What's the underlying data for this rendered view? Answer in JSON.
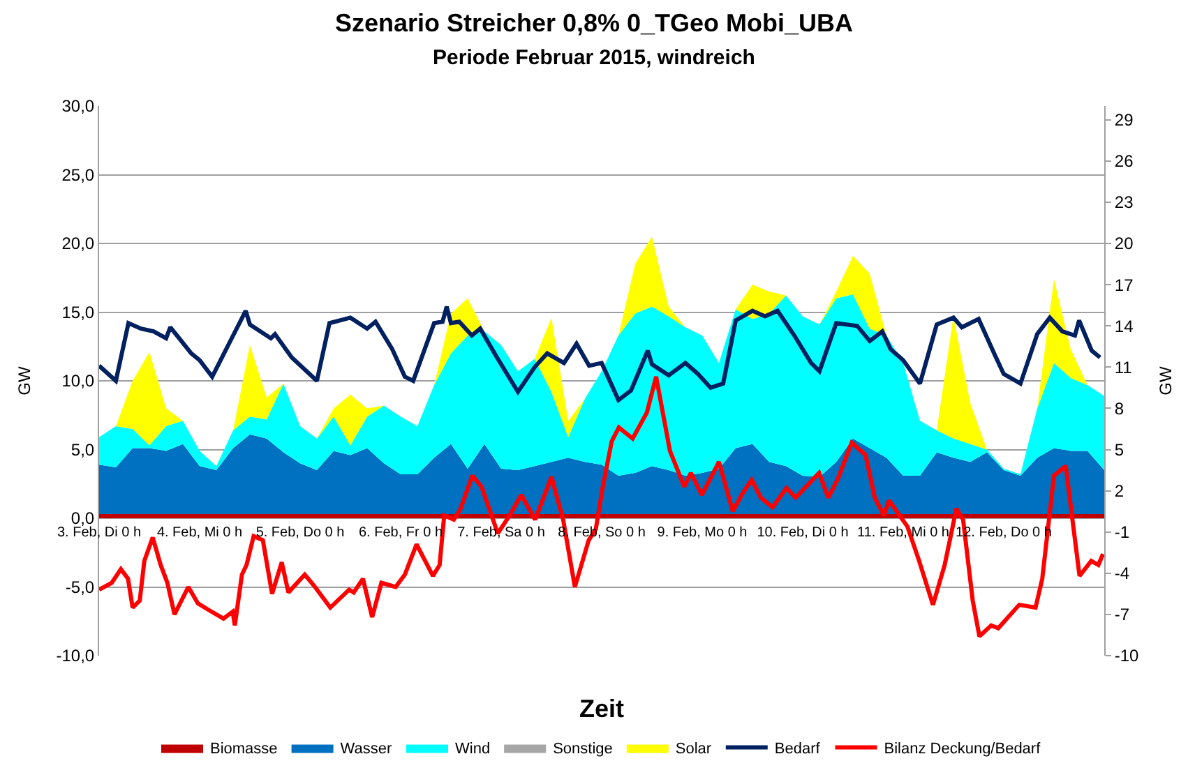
{
  "chart_data": {
    "type": "area",
    "title": "Szenario Streicher 0,8% 0_TGeo Mobi_UBA",
    "subtitle": "Periode Februar 2015, windreich",
    "xlabel": "Zeit",
    "ylabel": "GW",
    "y2label": "GW",
    "x": [
      "2015-02-03T00:00",
      "2015-02-03T04:00",
      "2015-02-03T08:00",
      "2015-02-03T12:00",
      "2015-02-03T16:00",
      "2015-02-03T20:00",
      "2015-02-04T00:00",
      "2015-02-04T04:00",
      "2015-02-04T08:00",
      "2015-02-04T12:00",
      "2015-02-04T16:00",
      "2015-02-04T20:00",
      "2015-02-05T00:00",
      "2015-02-05T04:00",
      "2015-02-05T08:00",
      "2015-02-05T12:00",
      "2015-02-05T16:00",
      "2015-02-05T20:00",
      "2015-02-06T00:00",
      "2015-02-06T04:00",
      "2015-02-06T08:00",
      "2015-02-06T12:00",
      "2015-02-06T16:00",
      "2015-02-06T20:00",
      "2015-02-07T00:00",
      "2015-02-07T04:00",
      "2015-02-07T08:00",
      "2015-02-07T12:00",
      "2015-02-07T16:00",
      "2015-02-07T20:00",
      "2015-02-08T00:00",
      "2015-02-08T04:00",
      "2015-02-08T08:00",
      "2015-02-08T12:00",
      "2015-02-08T16:00",
      "2015-02-08T20:00",
      "2015-02-09T00:00",
      "2015-02-09T04:00",
      "2015-02-09T08:00",
      "2015-02-09T12:00",
      "2015-02-09T16:00",
      "2015-02-09T20:00",
      "2015-02-10T00:00",
      "2015-02-10T04:00",
      "2015-02-10T08:00",
      "2015-02-10T12:00",
      "2015-02-10T16:00",
      "2015-02-10T20:00",
      "2015-02-11T00:00",
      "2015-02-11T04:00",
      "2015-02-11T08:00",
      "2015-02-11T12:00",
      "2015-02-11T16:00",
      "2015-02-11T20:00",
      "2015-02-12T00:00",
      "2015-02-12T04:00",
      "2015-02-12T08:00",
      "2015-02-12T12:00",
      "2015-02-12T16:00",
      "2015-02-12T20:00",
      "2015-02-13T00:00"
    ],
    "xlim": [
      "2015-02-03T00:00",
      "2015-02-13T00:00"
    ],
    "xticks": [
      {
        "value": "2015-02-03",
        "label": "3. Feb, Di 0 h"
      },
      {
        "value": "2015-02-04",
        "label": "4. Feb, Mi 0 h"
      },
      {
        "value": "2015-02-05",
        "label": "5. Feb, Do 0 h"
      },
      {
        "value": "2015-02-06",
        "label": "6. Feb, Fr 0 h"
      },
      {
        "value": "2015-02-07",
        "label": "7. Feb, Sa 0 h"
      },
      {
        "value": "2015-02-08",
        "label": "8. Feb, So 0 h"
      },
      {
        "value": "2015-02-09",
        "label": "9. Feb, Mo 0 h"
      },
      {
        "value": "2015-02-10",
        "label": "10. Feb, Di 0 h"
      },
      {
        "value": "2015-02-11",
        "label": "11. Feb, Mi 0 h"
      },
      {
        "value": "2015-02-12",
        "label": "12. Feb, Do 0 h"
      }
    ],
    "ylim": [
      -10,
      30
    ],
    "yticks": [
      {
        "value": -10,
        "label": "-10,0"
      },
      {
        "value": -5,
        "label": "-5,0"
      },
      {
        "value": 0,
        "label": "0,0"
      },
      {
        "value": 5,
        "label": "5,0"
      },
      {
        "value": 10,
        "label": "10,0"
      },
      {
        "value": 15,
        "label": "15,0"
      },
      {
        "value": 20,
        "label": "20,0"
      },
      {
        "value": 25,
        "label": "25,0"
      },
      {
        "value": 30,
        "label": "30,0"
      }
    ],
    "y2lim": [
      -10,
      30
    ],
    "y2ticks": [
      -10,
      -7,
      -4,
      -1,
      2,
      5,
      8,
      11,
      14,
      17,
      20,
      23,
      26,
      29
    ],
    "stacked": true,
    "grid": "y",
    "legend": "bottom",
    "series": [
      {
        "name": "Biomasse",
        "color": "#c00000",
        "values": [
          0.3,
          0.3,
          0.3,
          0.3,
          0.3,
          0.3,
          0.3,
          0.3,
          0.3,
          0.3,
          0.3,
          0.3,
          0.3,
          0.3,
          0.3,
          0.3,
          0.3,
          0.3,
          0.3,
          0.3,
          0.3,
          0.3,
          0.3,
          0.3,
          0.3,
          0.3,
          0.3,
          0.3,
          0.3,
          0.3,
          0.3,
          0.3,
          0.3,
          0.3,
          0.3,
          0.3,
          0.3,
          0.3,
          0.3,
          0.3,
          0.3,
          0.3,
          0.3,
          0.3,
          0.3,
          0.3,
          0.3,
          0.3,
          0.3,
          0.3,
          0.3,
          0.3,
          0.3,
          0.3,
          0.3,
          0.3,
          0.3,
          0.3,
          0.3,
          0.3,
          0.3
        ]
      },
      {
        "name": "Wasser",
        "color": "#0070c0",
        "values": [
          3.6,
          3.4,
          4.8,
          4.8,
          4.6,
          5.1,
          3.5,
          3.2,
          4.8,
          5.8,
          5.5,
          4.5,
          3.7,
          3.2,
          4.6,
          4.3,
          4.8,
          3.7,
          2.9,
          2.9,
          4.1,
          5.1,
          3.3,
          5.1,
          3.3,
          3.2,
          3.5,
          3.8,
          4.1,
          3.8,
          3.6,
          2.8,
          3.0,
          3.5,
          3.2,
          2.8,
          3.0,
          3.3,
          4.8,
          5.1,
          3.8,
          3.5,
          2.8,
          2.7,
          3.8,
          5.5,
          4.8,
          4.1,
          2.8,
          2.8,
          4.5,
          4.1,
          3.8,
          4.5,
          3.2,
          2.8,
          4.1,
          4.8,
          4.6,
          4.6,
          3.2
        ]
      },
      {
        "name": "Wind",
        "color": "#00ffff",
        "values": [
          2.0,
          3.0,
          1.4,
          0.2,
          1.8,
          1.7,
          1.1,
          0.3,
          1.3,
          1.3,
          1.4,
          5.0,
          2.7,
          2.3,
          2.5,
          0.7,
          2.3,
          4.2,
          4.2,
          3.5,
          5.3,
          6.6,
          9.7,
          8.2,
          9.0,
          7.2,
          7.8,
          5.1,
          1.5,
          4.6,
          6.8,
          10.2,
          11.6,
          11.6,
          11.2,
          10.8,
          10.0,
          7.7,
          10.1,
          9.1,
          10.8,
          12.4,
          11.6,
          11.1,
          11.9,
          10.5,
          8.7,
          8.9,
          8.2,
          4.0,
          1.6,
          1.4,
          1.3,
          0.2,
          0.1,
          0.1,
          3.6,
          6.2,
          5.3,
          4.8,
          5.4
        ]
      },
      {
        "name": "Sonstige",
        "color": "#a6a6a6",
        "values": [
          null,
          null,
          null,
          null,
          null,
          null,
          null,
          null,
          null,
          null,
          null,
          null,
          null,
          null,
          null,
          null,
          null,
          null,
          null,
          null,
          null,
          null,
          null,
          null,
          null,
          null,
          null,
          null,
          null,
          null,
          null,
          null,
          null,
          null,
          null,
          null,
          null,
          null,
          null,
          null,
          null,
          null,
          null,
          null,
          null,
          null,
          null,
          null,
          null,
          null,
          null,
          null,
          null,
          null,
          null,
          null,
          null,
          null,
          null,
          null,
          null
        ]
      },
      {
        "name": "Solar",
        "color": "#ffff00",
        "values": [
          0,
          0,
          3.5,
          6.8,
          1.3,
          0,
          0,
          0,
          0,
          5.2,
          1.6,
          0,
          0,
          0,
          0.6,
          3.7,
          0.6,
          0,
          0,
          0,
          0,
          2.9,
          2.7,
          0,
          0,
          0,
          0,
          5.4,
          1.2,
          0,
          0,
          0,
          3.6,
          5.1,
          0.7,
          0,
          0,
          0,
          0,
          2.5,
          1.6,
          0,
          0,
          0,
          0.5,
          2.8,
          4.0,
          0,
          0,
          0,
          0,
          8.9,
          3.0,
          0,
          0,
          0,
          0,
          6.1,
          2.1,
          0,
          0
        ]
      },
      {
        "name": "Bedarf",
        "type": "line",
        "color": "#002060",
        "x": [
          "2015-02-03T00:00",
          "2015-02-03T04:00",
          "2015-02-03T07:00",
          "2015-02-03T10:00",
          "2015-02-03T13:00",
          "2015-02-03T16:00",
          "2015-02-03T17:00",
          "2015-02-03T22:00",
          "2015-02-04T00:00",
          "2015-02-04T03:00",
          "2015-02-04T08:00",
          "2015-02-04T11:00",
          "2015-02-04T12:00",
          "2015-02-04T17:00",
          "2015-02-04T18:00",
          "2015-02-04T22:00",
          "2015-02-05T04:00",
          "2015-02-05T07:00",
          "2015-02-05T12:00",
          "2015-02-05T16:00",
          "2015-02-05T18:00",
          "2015-02-05T22:00",
          "2015-02-06T01:00",
          "2015-02-06T03:00",
          "2015-02-06T08:00",
          "2015-02-06T10:00",
          "2015-02-06T11:00",
          "2015-02-06T12:00",
          "2015-02-06T14:00",
          "2015-02-06T17:00",
          "2015-02-06T19:00",
          "2015-02-06T23:00",
          "2015-02-07T04:00",
          "2015-02-07T08:00",
          "2015-02-07T11:00",
          "2015-02-07T15:00",
          "2015-02-07T18:00",
          "2015-02-07T21:00",
          "2015-02-08T00:00",
          "2015-02-08T04:00",
          "2015-02-08T07:00",
          "2015-02-08T11:00",
          "2015-02-08T12:00",
          "2015-02-08T16:00",
          "2015-02-08T20:00",
          "2015-02-08T23:00",
          "2015-02-09T02:00",
          "2015-02-09T05:00",
          "2015-02-09T08:00",
          "2015-02-09T12:00",
          "2015-02-09T15:00",
          "2015-02-09T18:00",
          "2015-02-09T22:00",
          "2015-02-10T02:00",
          "2015-02-10T04:00",
          "2015-02-10T08:00",
          "2015-02-10T13:00",
          "2015-02-10T16:00",
          "2015-02-10T19:00",
          "2015-02-10T21:00",
          "2015-02-11T00:00",
          "2015-02-11T04:00",
          "2015-02-11T08:00",
          "2015-02-11T12:00",
          "2015-02-11T14:00",
          "2015-02-11T18:00",
          "2015-02-11T22:00",
          "2015-02-12T00:00",
          "2015-02-12T04:00",
          "2015-02-12T08:00",
          "2015-02-12T11:00",
          "2015-02-12T14:00",
          "2015-02-12T17:00",
          "2015-02-12T18:00",
          "2015-02-12T21:00",
          "2015-02-12T23:00"
        ],
        "values": [
          11.1,
          10.0,
          14.2,
          13.8,
          13.6,
          13.1,
          13.9,
          12.0,
          11.5,
          10.3,
          13.3,
          15.1,
          14.1,
          13.1,
          13.4,
          11.7,
          10.0,
          14.2,
          14.6,
          13.8,
          14.3,
          12.3,
          10.3,
          10.0,
          14.2,
          14.3,
          15.4,
          14.2,
          14.3,
          13.3,
          13.8,
          11.7,
          9.2,
          11.0,
          12.0,
          11.3,
          12.7,
          11.1,
          11.3,
          8.6,
          9.3,
          12.2,
          11.2,
          10.4,
          11.3,
          10.5,
          9.5,
          9.8,
          14.4,
          15.1,
          14.7,
          15.1,
          13.3,
          11.3,
          10.7,
          14.2,
          14.0,
          12.9,
          13.6,
          12.3,
          11.5,
          9.8,
          14.1,
          14.6,
          13.9,
          14.5,
          11.8,
          10.5,
          9.8,
          13.4,
          14.6,
          13.6,
          13.3,
          14.4,
          12.2,
          11.7
        ]
      },
      {
        "name": "Bilanz Deckung/Bedarf",
        "type": "line",
        "color": "#ff0000",
        "x": [
          "2015-02-03T00:00",
          "2015-02-03T03:00",
          "2015-02-03T05:12",
          "2015-02-03T06:54",
          "2015-02-03T08:00",
          "2015-02-03T09:42",
          "2015-02-03T10:48",
          "2015-02-03T12:48",
          "2015-02-03T14:42",
          "2015-02-03T16:18",
          "2015-02-03T18:00",
          "2015-02-03T21:18",
          "2015-02-03T23:36",
          "2015-02-04T02:18",
          "2015-02-04T05:42",
          "2015-02-04T07:54",
          "2015-02-04T08:24",
          "2015-02-04T10:06",
          "2015-02-04T11:12",
          "2015-02-04T12:54",
          "2015-02-04T15:06",
          "2015-02-04T17:18",
          "2015-02-04T19:36",
          "2015-02-04T21:12",
          "2015-02-05T01:06",
          "2015-02-05T03:18",
          "2015-02-05T07:12",
          "2015-02-05T11:42",
          "2015-02-05T12:48",
          "2015-02-05T15:00",
          "2015-02-05T17:12",
          "2015-02-05T19:24",
          "2015-02-05T22:48",
          "2015-02-06T01:00",
          "2015-02-06T03:48",
          "2015-02-06T07:42",
          "2015-02-06T09:18",
          "2015-02-06T10:24",
          "2015-02-06T12:42",
          "2015-02-06T14:18",
          "2015-02-06T17:06",
          "2015-02-06T19:18",
          "2015-02-06T23:12",
          "2015-02-07T02:00",
          "2015-02-07T04:48",
          "2015-02-07T08:06",
          "2015-02-07T12:00",
          "2015-02-07T14:48",
          "2015-02-07T17:36",
          "2015-02-07T20:54",
          "2015-02-07T22:36",
          "2015-02-08T00:12",
          "2015-02-08T02:24",
          "2015-02-08T04:06",
          "2015-02-08T07:24",
          "2015-02-08T10:48",
          "2015-02-08T13:00",
          "2015-02-08T16:18",
          "2015-02-08T19:42",
          "2015-02-08T21:18",
          "2015-02-08T23:54",
          "2015-02-09T04:00",
          "2015-02-09T07:18",
          "2015-02-09T09:36",
          "2015-02-09T11:48",
          "2015-02-09T14:00",
          "2015-02-09T16:48",
          "2015-02-09T20:06",
          "2015-02-09T22:18",
          "2015-02-10T03:54",
          "2015-02-10T06:06",
          "2015-02-10T08:18",
          "2015-02-10T11:42",
          "2015-02-10T15:00",
          "2015-02-10T17:12",
          "2015-02-10T19:24",
          "2015-02-10T20:36",
          "2015-02-11T01:00",
          "2015-02-11T03:48",
          "2015-02-11T07:06",
          "2015-02-11T09:54",
          "2015-02-11T12:42",
          "2015-02-11T14:18",
          "2015-02-11T16:36",
          "2015-02-11T18:12",
          "2015-02-11T21:00",
          "2015-02-11T22:42",
          "2015-02-12T03:42",
          "2015-02-12T07:36",
          "2015-02-12T09:12",
          "2015-02-12T12:00",
          "2015-02-12T14:48",
          "2015-02-12T18:06",
          "2015-02-12T20:54",
          "2015-02-12T22:36",
          "2015-02-12T23:42"
        ],
        "values": [
          -5.2,
          -4.7,
          -3.7,
          -4.4,
          -6.5,
          -6.0,
          -3.1,
          -1.4,
          -3.4,
          -4.7,
          -7.0,
          -5.0,
          -6.2,
          -6.7,
          -7.3,
          -6.8,
          -7.8,
          -4.1,
          -3.4,
          -1.3,
          -1.6,
          -5.5,
          -3.2,
          -5.4,
          -4.1,
          -4.9,
          -6.5,
          -5.2,
          -5.4,
          -4.4,
          -7.2,
          -4.7,
          -5.0,
          -4.1,
          -1.9,
          -4.2,
          -3.4,
          0.2,
          -0.1,
          0.7,
          3.1,
          2.3,
          -1.1,
          0.2,
          1.7,
          -0.1,
          3.0,
          -0.1,
          -5.0,
          -1.6,
          -0.8,
          2.2,
          5.6,
          6.6,
          5.8,
          7.7,
          10.3,
          4.9,
          2.3,
          3.3,
          1.7,
          4.1,
          0.5,
          1.8,
          2.8,
          1.5,
          0.8,
          2.2,
          1.5,
          3.3,
          1.5,
          2.8,
          5.5,
          4.6,
          1.5,
          0.2,
          1.3,
          -0.6,
          -3.1,
          -6.3,
          -3.4,
          0.7,
          -0.1,
          -6.0,
          -8.6,
          -7.8,
          -8.0,
          -6.3,
          -6.5,
          -4.4,
          3.1,
          3.8,
          -4.2,
          -3.1,
          -3.4,
          -2.6
        ]
      }
    ]
  }
}
